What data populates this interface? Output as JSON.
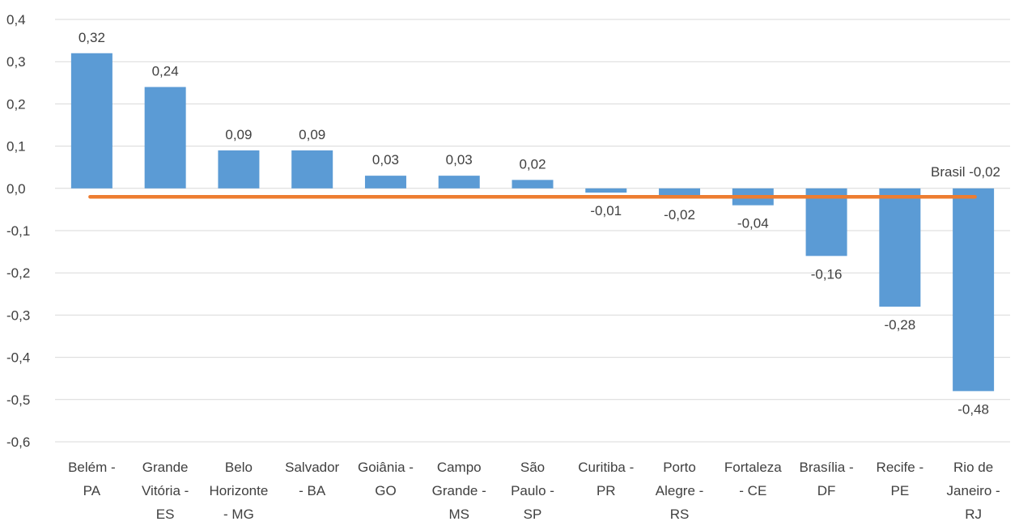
{
  "chart_data": {
    "type": "bar",
    "categories": [
      [
        "Belém -",
        "PA"
      ],
      [
        "Grande",
        "Vitória -",
        "ES"
      ],
      [
        "Belo",
        "Horizonte",
        "- MG"
      ],
      [
        "Salvador",
        "- BA"
      ],
      [
        "Goiânia -",
        "GO"
      ],
      [
        "Campo",
        "Grande -",
        "MS"
      ],
      [
        "São",
        "Paulo -",
        "SP"
      ],
      [
        "Curitiba -",
        "PR"
      ],
      [
        "Porto",
        "Alegre -",
        "RS"
      ],
      [
        "Fortaleza",
        "- CE"
      ],
      [
        "Brasília -",
        "DF"
      ],
      [
        "Recife -",
        "PE"
      ],
      [
        "Rio de",
        "Janeiro -",
        "RJ"
      ]
    ],
    "values": [
      0.32,
      0.24,
      0.09,
      0.09,
      0.03,
      0.03,
      0.02,
      -0.01,
      -0.02,
      -0.04,
      -0.16,
      -0.28,
      -0.48
    ],
    "data_labels": [
      "0,32",
      "0,24",
      "0,09",
      "0,09",
      "0,03",
      "0,03",
      "0,02",
      "-0,01",
      "-0,02",
      "-0,04",
      "-0,16",
      "-0,28",
      "-0,48"
    ],
    "reference_line": {
      "value": -0.02,
      "label": "Brasil -0,02"
    },
    "ylim": [
      -0.6,
      0.4
    ],
    "yticks": [
      {
        "value": 0.4,
        "label": "0,4"
      },
      {
        "value": 0.3,
        "label": "0,3"
      },
      {
        "value": 0.2,
        "label": "0,2"
      },
      {
        "value": 0.1,
        "label": "0,1"
      },
      {
        "value": 0.0,
        "label": "0,0"
      },
      {
        "value": -0.1,
        "label": "-0,1"
      },
      {
        "value": -0.2,
        "label": "-0,2"
      },
      {
        "value": -0.3,
        "label": "-0,3"
      },
      {
        "value": -0.4,
        "label": "-0,4"
      },
      {
        "value": -0.5,
        "label": "-0,5"
      },
      {
        "value": -0.6,
        "label": "-0,6"
      }
    ],
    "grid": true,
    "colors": {
      "bar": "#5B9BD5",
      "reference_line": "#ED7D31",
      "grid": "#D9D9D9",
      "text": "#404040"
    }
  }
}
